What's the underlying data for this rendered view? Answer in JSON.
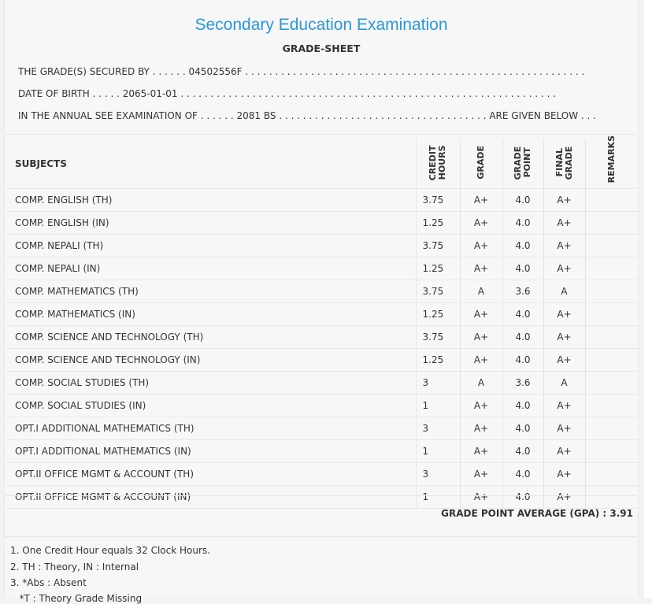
{
  "header": {
    "title": "Secondary Education Examination",
    "subtitle": "GRADE-SHEET"
  },
  "info": {
    "secured_by": "THE GRADE(S) SECURED BY . . . . . . 04502556F . . . . . . . . . . . . . . . . . . . . . . . . . . . . . . . . . . . . . . . . . . . . . . . . . . . . . . . . .",
    "date_of_birth": "DATE OF BIRTH . . . . . 2065-01-01 . . . . . . . . . . . . . . . . . . . . . . . . . . . . . . . . . . . . . . . . . . . . . . . . . . . . . . . . . . . . . . .",
    "exam": "IN THE ANNUAL SEE EXAMINATION OF . . . . . . 2081 BS . . . . . . . . . . . . . . . . . . . . . . . . . . . . . . . . . . . ARE GIVEN BELOW . . ."
  },
  "table": {
    "headers": {
      "subjects": "SUBJECTS",
      "credit_hours": "CREDIT HOURS",
      "grade": "GRADE",
      "grade_point": "GRADE POINT",
      "final_grade": "FINAL GRADE",
      "remarks": "REMARKS"
    },
    "rows": [
      {
        "subject": "COMP. ENGLISH (TH)",
        "credit": "3.75",
        "grade": "A+",
        "point": "4.0",
        "final": "A+",
        "remarks": ""
      },
      {
        "subject": "COMP. ENGLISH (IN)",
        "credit": "1.25",
        "grade": "A+",
        "point": "4.0",
        "final": "A+",
        "remarks": ""
      },
      {
        "subject": "COMP. NEPALI (TH)",
        "credit": "3.75",
        "grade": "A+",
        "point": "4.0",
        "final": "A+",
        "remarks": ""
      },
      {
        "subject": "COMP. NEPALI (IN)",
        "credit": "1.25",
        "grade": "A+",
        "point": "4.0",
        "final": "A+",
        "remarks": ""
      },
      {
        "subject": "COMP. MATHEMATICS (TH)",
        "credit": "3.75",
        "grade": "A",
        "point": "3.6",
        "final": "A",
        "remarks": ""
      },
      {
        "subject": "COMP. MATHEMATICS (IN)",
        "credit": "1.25",
        "grade": "A+",
        "point": "4.0",
        "final": "A+",
        "remarks": ""
      },
      {
        "subject": "COMP. SCIENCE AND TECHNOLOGY (TH)",
        "credit": "3.75",
        "grade": "A+",
        "point": "4.0",
        "final": "A+",
        "remarks": ""
      },
      {
        "subject": "COMP. SCIENCE AND TECHNOLOGY (IN)",
        "credit": "1.25",
        "grade": "A+",
        "point": "4.0",
        "final": "A+",
        "remarks": ""
      },
      {
        "subject": "COMP. SOCIAL STUDIES (TH)",
        "credit": "3",
        "grade": "A",
        "point": "3.6",
        "final": "A",
        "remarks": ""
      },
      {
        "subject": "COMP. SOCIAL STUDIES (IN)",
        "credit": "1",
        "grade": "A+",
        "point": "4.0",
        "final": "A+",
        "remarks": ""
      },
      {
        "subject": "OPT.I ADDITIONAL MATHEMATICS (TH)",
        "credit": "3",
        "grade": "A+",
        "point": "4.0",
        "final": "A+",
        "remarks": ""
      },
      {
        "subject": "OPT.I ADDITIONAL MATHEMATICS (IN)",
        "credit": "1",
        "grade": "A+",
        "point": "4.0",
        "final": "A+",
        "remarks": ""
      },
      {
        "subject": "OPT.II OFFICE MGMT & ACCOUNT (TH)",
        "credit": "3",
        "grade": "A+",
        "point": "4.0",
        "final": "A+",
        "remarks": ""
      },
      {
        "subject": "OPT.II OFFICE MGMT & ACCOUNT (IN)",
        "credit": "1",
        "grade": "A+",
        "point": "4.0",
        "final": "A+",
        "remarks": ""
      }
    ]
  },
  "gpa": "GRADE POINT AVERAGE (GPA) : 3.91",
  "notes": [
    "1. One Credit Hour equals 32 Clock Hours.",
    "2. TH : Theory, IN : Internal",
    "3. *Abs : Absent",
    "   *T : Theory Grade Missing"
  ],
  "colors": {
    "title": "#2b96d8",
    "text": "#333333",
    "background": "#f7f7f7"
  }
}
